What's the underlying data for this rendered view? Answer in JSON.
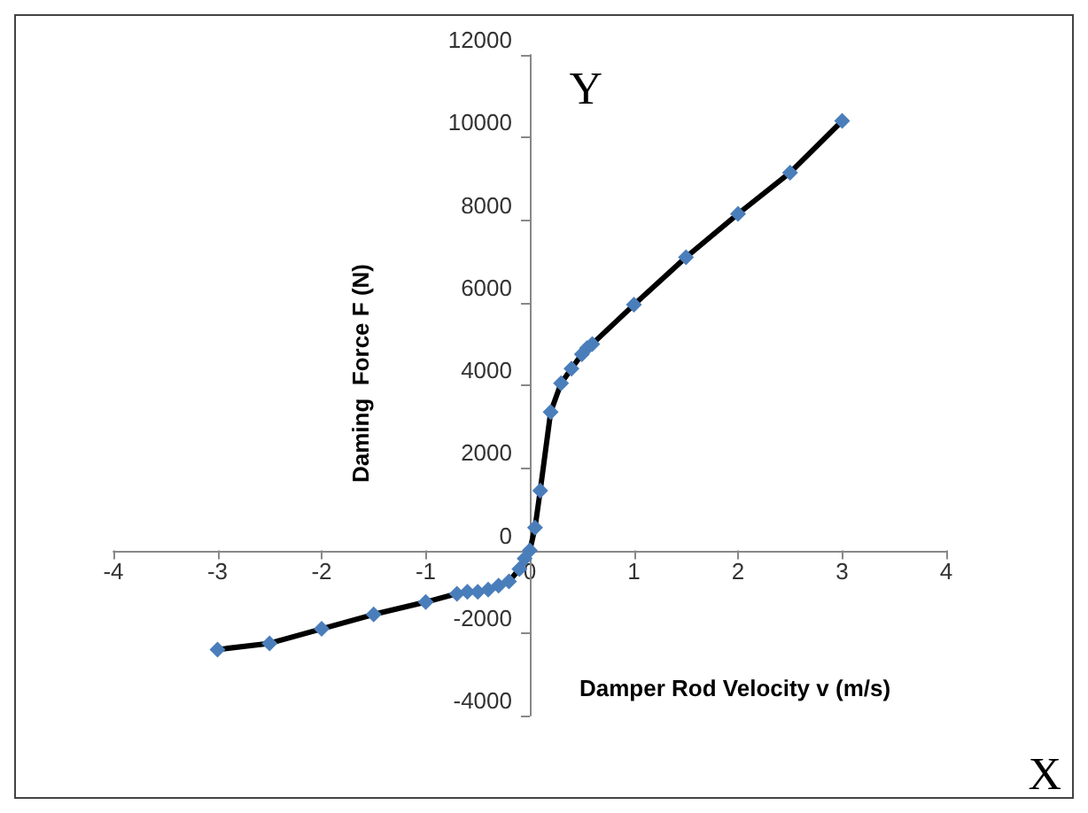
{
  "chart_data": {
    "type": "line",
    "xlabel": "Damper Rod Velocity v (m/s)",
    "ylabel": "Daming  Force F (N)",
    "annotations": [
      "Y",
      "X"
    ],
    "x": [
      -3,
      -2.5,
      -2,
      -1.5,
      -1,
      -0.7,
      -0.6,
      -0.5,
      -0.4,
      -0.3,
      -0.2,
      -0.1,
      -0.05,
      0,
      0.05,
      0.1,
      0.2,
      0.3,
      0.4,
      0.5,
      0.55,
      0.6,
      1,
      1.5,
      2,
      2.5,
      3
    ],
    "series": [
      {
        "color": "#4a7ebb",
        "values": [
          -2400,
          -2250,
          -1900,
          -1550,
          -1250,
          -1050,
          -1000,
          -1000,
          -950,
          -850,
          -750,
          -450,
          -200,
          0,
          550,
          1450,
          3350,
          4050,
          4400,
          4750,
          4900,
          5000,
          5950,
          7100,
          8150,
          9150,
          10400
        ]
      }
    ],
    "xlim": [
      -4,
      4
    ],
    "xticks": [
      -4,
      -3,
      -2,
      -1,
      0,
      1,
      2,
      3,
      4
    ],
    "ylim": [
      -4000,
      12000
    ],
    "yticks": [
      -4000,
      -2000,
      0,
      2000,
      4000,
      6000,
      8000,
      10000,
      12000
    ],
    "marker": "diamond",
    "line_style": "solid"
  }
}
